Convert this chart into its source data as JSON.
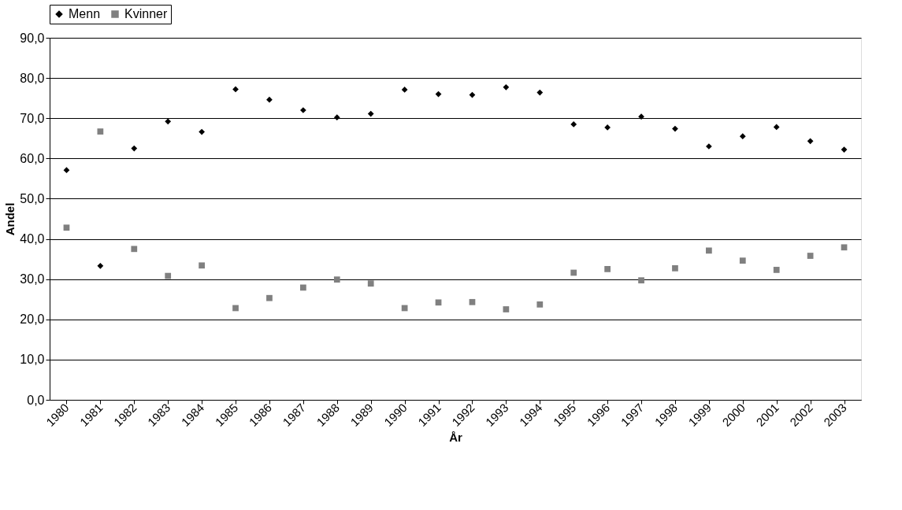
{
  "chart_data": {
    "type": "scatter",
    "xlabel": "År",
    "ylabel": "Andel",
    "categories": [
      "1980",
      "1981",
      "1982",
      "1983",
      "1984",
      "1985",
      "1986",
      "1987",
      "1988",
      "1989",
      "1990",
      "1991",
      "1992",
      "1993",
      "1994",
      "1995",
      "1996",
      "1997",
      "1998",
      "1999",
      "2000",
      "2001",
      "2002",
      "2003"
    ],
    "series": [
      {
        "name": "Menn",
        "color": "#000000",
        "marker": "diamond",
        "values": [
          57.1,
          33.3,
          62.5,
          69.2,
          66.6,
          77.2,
          74.6,
          72.0,
          70.2,
          71.1,
          77.1,
          76.0,
          75.8,
          77.7,
          76.4,
          68.5,
          67.7,
          70.4,
          67.4,
          63.0,
          65.5,
          67.8,
          64.3,
          62.2
        ]
      },
      {
        "name": "Kvinner",
        "color": "#808080",
        "marker": "square",
        "values": [
          42.8,
          66.7,
          37.5,
          30.8,
          33.4,
          22.8,
          25.3,
          27.9,
          29.9,
          28.9,
          22.8,
          24.2,
          24.3,
          22.5,
          23.7,
          31.6,
          32.5,
          29.7,
          32.7,
          37.1,
          34.6,
          32.3,
          35.8,
          37.9
        ]
      }
    ],
    "ylim": [
      0,
      90
    ],
    "yticks": [
      {
        "value": 0,
        "label": "0,0"
      },
      {
        "value": 10,
        "label": "10,0"
      },
      {
        "value": 20,
        "label": "20,0"
      },
      {
        "value": 30,
        "label": "30,0"
      },
      {
        "value": 40,
        "label": "40,0"
      },
      {
        "value": 50,
        "label": "50,0"
      },
      {
        "value": 60,
        "label": "60,0"
      },
      {
        "value": 70,
        "label": "70,0"
      },
      {
        "value": 80,
        "label": "80,0"
      },
      {
        "value": 90,
        "label": "90,0"
      }
    ],
    "grid": "y",
    "legend": "top"
  }
}
